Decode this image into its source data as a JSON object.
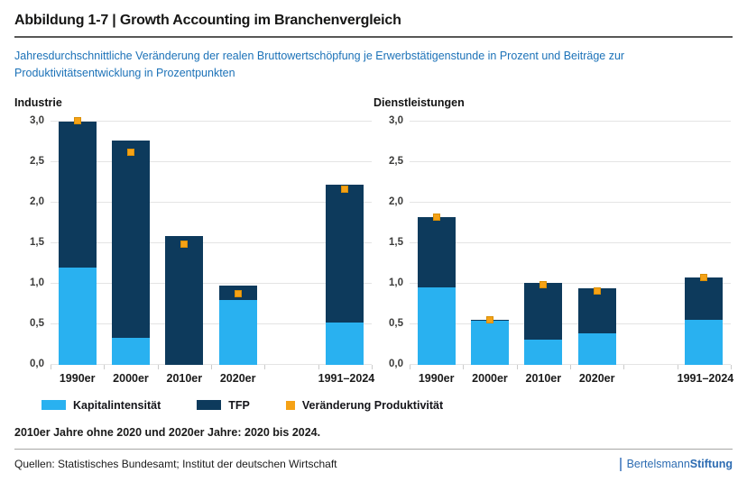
{
  "header": {
    "title": "Abbildung 1-7 | Growth Accounting im Branchenvergleich",
    "subtitle": "Jahresdurchschnittliche Veränderung der realen Bruttowertschöpfung je Erwerbstätigenstunde in Prozent und Beiträge zur Produktivitätsentwicklung in Prozentpunkten"
  },
  "chart_data": [
    {
      "type": "bar",
      "panel_title": "Industrie",
      "categories": [
        "1990er",
        "2000er",
        "2010er",
        "2020er",
        "1991–2024"
      ],
      "series": [
        {
          "name": "Kapitalintensität",
          "color": "#29b1f0",
          "values": [
            1.2,
            0.33,
            0.0,
            0.8,
            0.52
          ]
        },
        {
          "name": "TFP",
          "color": "#0d3a5c",
          "values": [
            1.8,
            2.43,
            1.58,
            0.17,
            1.7
          ]
        }
      ],
      "marker_series": {
        "name": "Veränderung Produktivität",
        "color": "#f5a216",
        "values": [
          3.02,
          2.63,
          1.5,
          0.88,
          2.17
        ]
      },
      "stacked": true,
      "ylim": [
        0,
        3.0
      ],
      "yticks": [
        {
          "label": "0,0",
          "value": 0
        },
        {
          "label": "0,5",
          "value": 0.5
        },
        {
          "label": "1,0",
          "value": 1
        },
        {
          "label": "1,5",
          "value": 1.5
        },
        {
          "label": "2,0",
          "value": 2
        },
        {
          "label": "2,5",
          "value": 2.5
        },
        {
          "label": "3,0",
          "value": 3
        }
      ],
      "grid": "horizontal"
    },
    {
      "type": "bar",
      "panel_title": "Dienstleistungen",
      "categories": [
        "1990er",
        "2000er",
        "2010er",
        "2020er",
        "1991–2024"
      ],
      "series": [
        {
          "name": "Kapitalintensität",
          "color": "#29b1f0",
          "values": [
            0.95,
            0.54,
            0.31,
            0.38,
            0.55
          ]
        },
        {
          "name": "TFP",
          "color": "#0d3a5c",
          "values": [
            0.87,
            0.01,
            0.7,
            0.56,
            0.52
          ]
        }
      ],
      "marker_series": {
        "name": "Veränderung Produktivität",
        "color": "#f5a216",
        "values": [
          1.83,
          0.56,
          1.0,
          0.92,
          1.08
        ]
      },
      "stacked": true,
      "ylim": [
        0,
        3.0
      ],
      "yticks": [
        {
          "label": "0,0",
          "value": 0
        },
        {
          "label": "0,5",
          "value": 0.5
        },
        {
          "label": "1,0",
          "value": 1
        },
        {
          "label": "1,5",
          "value": 1.5
        },
        {
          "label": "2,0",
          "value": 2
        },
        {
          "label": "2,5",
          "value": 2.5
        },
        {
          "label": "3,0",
          "value": 3
        }
      ],
      "grid": "horizontal"
    }
  ],
  "legend": {
    "items": [
      {
        "label": "Kapitalintensität",
        "color": "#29b1f0",
        "shape": "rect"
      },
      {
        "label": "TFP",
        "color": "#0d3a5c",
        "shape": "rect"
      },
      {
        "label": "Veränderung Produktivität",
        "color": "#f5a216",
        "shape": "square"
      }
    ]
  },
  "note": "2010er Jahre ohne 2020 und 2020er Jahre: 2020 bis 2024.",
  "footer": {
    "sources": "Quellen: Statistisches Bundesamt; Institut der deutschen Wirtschaft",
    "logo_regular": "Bertelsmann",
    "logo_bold": "Stiftung"
  },
  "colors": {
    "subtitle_blue": "#1c72b8",
    "logo_blue": "#2d6cb2",
    "kapitalintensitaet": "#29b1f0",
    "tfp": "#0d3a5c",
    "produktivitaet_marker": "#f5a216",
    "gridline": "#e4e4e4"
  }
}
